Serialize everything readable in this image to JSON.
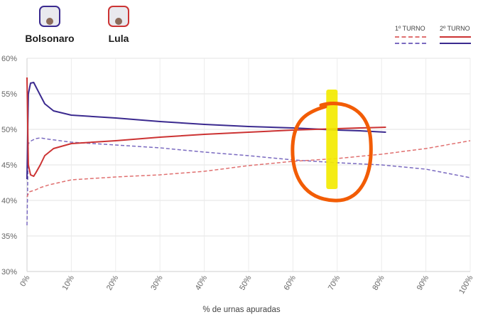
{
  "candidates": [
    {
      "name": "Bolsonaro",
      "color": "#3b2a8f"
    },
    {
      "name": "Lula",
      "color": "#cc3333"
    }
  ],
  "legend": {
    "round1": "1º TURNO",
    "round2": "2º TURNO"
  },
  "chart_data": {
    "type": "line",
    "xlabel": "% de urnas apuradas",
    "ylabel": "",
    "xlim": [
      0,
      100
    ],
    "ylim": [
      30,
      60
    ],
    "x_ticks": [
      "0%",
      "10%",
      "20%",
      "30%",
      "40%",
      "50%",
      "60%",
      "70%",
      "80%",
      "90%",
      "100%"
    ],
    "y_ticks": [
      "30%",
      "35%",
      "40%",
      "45%",
      "50%",
      "55%",
      "60%"
    ],
    "grid": true,
    "series": [
      {
        "name": "Bolsonaro",
        "round": "1º TURNO",
        "style": "dashed",
        "color": "#7a6ac0",
        "x": [
          0,
          0.3,
          1,
          2,
          3,
          5,
          10,
          20,
          30,
          40,
          50,
          60,
          70,
          80,
          90,
          100
        ],
        "y": [
          36.5,
          48.0,
          48.4,
          48.7,
          48.8,
          48.6,
          48.2,
          47.8,
          47.4,
          46.8,
          46.3,
          45.7,
          45.3,
          45.0,
          44.4,
          43.2
        ]
      },
      {
        "name": "Lula",
        "round": "1º TURNO",
        "style": "dashed",
        "color": "#e07070",
        "x": [
          0,
          0.5,
          1,
          2,
          3,
          5,
          10,
          20,
          30,
          40,
          50,
          60,
          70,
          80,
          90,
          100
        ],
        "y": [
          40.5,
          41.2,
          41.3,
          41.5,
          41.8,
          42.2,
          42.9,
          43.3,
          43.6,
          44.1,
          44.9,
          45.5,
          45.9,
          46.5,
          47.3,
          48.4
        ]
      },
      {
        "name": "Bolsonaro",
        "round": "2º TURNO",
        "style": "solid",
        "color": "#3b2a8f",
        "x": [
          0,
          0.3,
          0.8,
          1.5,
          2,
          3,
          4,
          6,
          10,
          20,
          30,
          40,
          50,
          60,
          70,
          75,
          81
        ],
        "y": [
          43.0,
          55.0,
          56.5,
          56.6,
          56.0,
          54.8,
          53.6,
          52.6,
          52.0,
          51.6,
          51.1,
          50.7,
          50.4,
          50.2,
          49.9,
          49.8,
          49.6
        ]
      },
      {
        "name": "Lula",
        "round": "2º TURNO",
        "style": "solid",
        "color": "#cc3333",
        "x": [
          0,
          0.3,
          0.8,
          1.5,
          2,
          3,
          4,
          6,
          10,
          20,
          30,
          40,
          50,
          60,
          70,
          75,
          81
        ],
        "y": [
          57.3,
          45.0,
          43.6,
          43.4,
          43.9,
          45.0,
          46.3,
          47.3,
          48.0,
          48.4,
          48.9,
          49.3,
          49.6,
          49.9,
          50.1,
          50.2,
          50.3
        ]
      }
    ]
  },
  "annotations": {
    "orange_circle_color": "#f25c05",
    "yellow_highlight_color": "#f3ea00"
  }
}
